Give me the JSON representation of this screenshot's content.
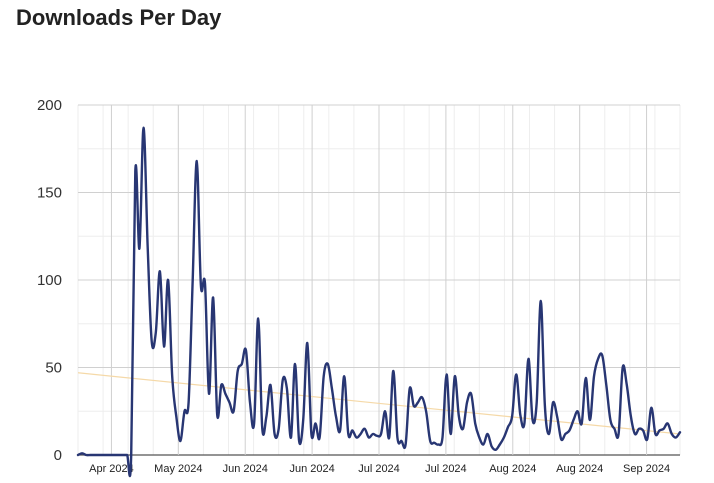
{
  "title": "Downloads Per Day",
  "chart_data": {
    "type": "line",
    "title": "Downloads Per Day",
    "xlabel": "",
    "ylabel": "",
    "ylim": [
      0,
      200
    ],
    "y_ticks": [
      0,
      50,
      100,
      150,
      200
    ],
    "x_tick_labels": [
      "Apr 2024",
      "May 2024",
      "Jun 2024",
      "Jun 2024",
      "Jul 2024",
      "Jul 2024",
      "Aug 2024",
      "Aug 2024",
      "Sep 2024"
    ],
    "grid": true,
    "legend": "none",
    "x_start": "2024-03-25",
    "series": [
      {
        "color": "#283673",
        "values": [
          0,
          1,
          0,
          0,
          0,
          0,
          0,
          0,
          0,
          0,
          0,
          0,
          0,
          0,
          162,
          118,
          187,
          120,
          65,
          70,
          105,
          62,
          100,
          45,
          22,
          8,
          25,
          30,
          100,
          168,
          97,
          98,
          35,
          90,
          23,
          40,
          35,
          30,
          25,
          48,
          52,
          60,
          30,
          18,
          78,
          15,
          22,
          40,
          12,
          15,
          43,
          38,
          10,
          52,
          8,
          20,
          64,
          12,
          18,
          10,
          45,
          52,
          38,
          22,
          14,
          45,
          12,
          14,
          10,
          12,
          15,
          10,
          12,
          11,
          12,
          25,
          10,
          48,
          10,
          8,
          6,
          38,
          28,
          30,
          33,
          25,
          8,
          7,
          6,
          10,
          46,
          12,
          45,
          22,
          15,
          30,
          35,
          18,
          10,
          6,
          12,
          5,
          3,
          6,
          10,
          16,
          22,
          46,
          23,
          18,
          55,
          20,
          30,
          88,
          28,
          12,
          30,
          22,
          9,
          12,
          14,
          20,
          25,
          18,
          44,
          20,
          45,
          55,
          57,
          40,
          20,
          15,
          12,
          50,
          40,
          22,
          12,
          15,
          14,
          9,
          27,
          12,
          14,
          15,
          18,
          12,
          10,
          13
        ]
      },
      {
        "color": "#f5d9a8",
        "values": [
          47,
          12
        ]
      }
    ]
  }
}
